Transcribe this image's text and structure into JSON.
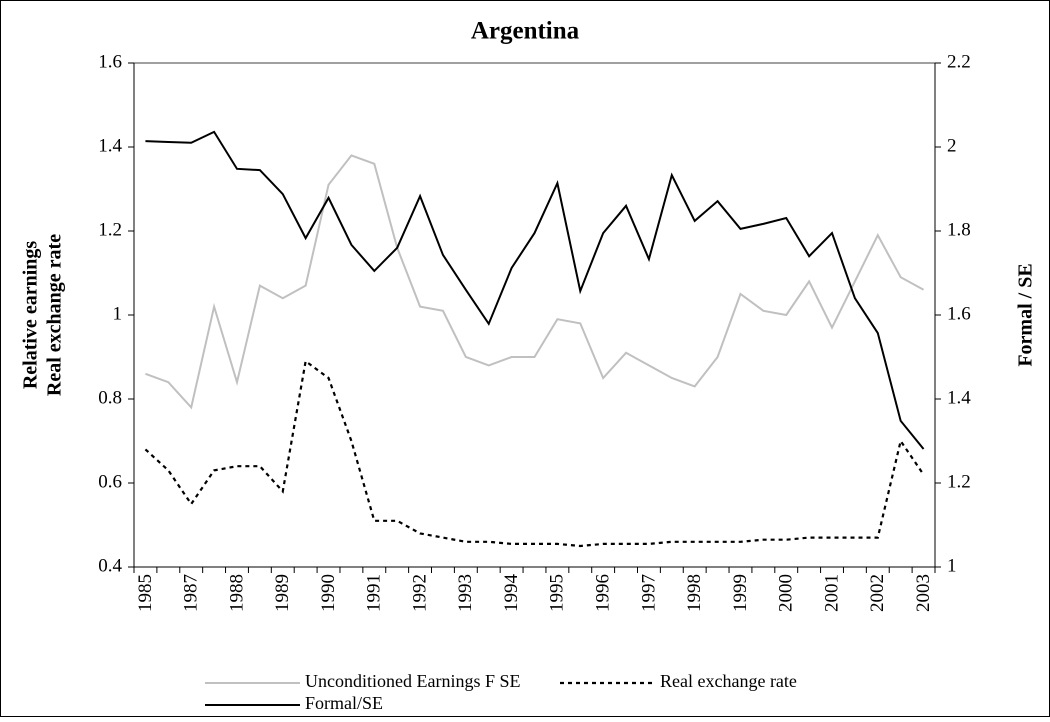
{
  "chart_data": {
    "type": "line",
    "title": "Argentina",
    "y_label": [
      "Relative earnings",
      "Real exchange rate"
    ],
    "y2_label": "Formal / SE",
    "categories": [
      "1985",
      null,
      "1987",
      null,
      "1988",
      null,
      "1989",
      null,
      "1990",
      null,
      "1991",
      null,
      "1992",
      null,
      "1993",
      null,
      "1994",
      null,
      "1995",
      null,
      "1996",
      null,
      "1997",
      null,
      "1998",
      null,
      "1999",
      null,
      "2000",
      null,
      "2001",
      null,
      "2002",
      null,
      "2003"
    ],
    "ylim": [
      0.4,
      1.6
    ],
    "yticks": [
      0.4,
      0.6,
      0.8,
      1,
      1.2,
      1.4,
      1.6
    ],
    "y2lim": [
      1,
      2.2
    ],
    "y2ticks": [
      1,
      1.2,
      1.4,
      1.6,
      1.8,
      2,
      2.2
    ],
    "series": [
      {
        "name": "Unconditioned Earnings F SE",
        "color": "#c0c0c0",
        "style": "solid",
        "values": [
          0.86,
          0.84,
          0.78,
          1.02,
          0.84,
          1.07,
          1.04,
          1.07,
          1.31,
          1.38,
          1.36,
          1.16,
          1.02,
          1.01,
          0.9,
          0.88,
          0.9,
          0.9,
          0.99,
          0.98,
          0.85,
          0.91,
          0.88,
          0.85,
          0.83,
          0.9,
          1.05,
          1.01,
          1.0,
          1.08,
          0.97,
          1.08,
          1.19,
          1.09,
          1.06
        ]
      },
      {
        "name": "Real exchange rate",
        "color": "#000000",
        "style": "dotted",
        "values": [
          0.68,
          0.63,
          0.55,
          0.63,
          0.64,
          0.64,
          0.58,
          0.89,
          0.85,
          0.7,
          0.51,
          0.51,
          0.48,
          0.47,
          0.46,
          0.46,
          0.455,
          0.455,
          0.455,
          0.45,
          0.455,
          0.455,
          0.455,
          0.46,
          0.46,
          0.46,
          0.46,
          0.465,
          0.465,
          0.47,
          0.47,
          0.47,
          0.47,
          0.7,
          0.62
        ]
      },
      {
        "name": "Formal/SE",
        "color": "#000000",
        "style": "solid",
        "axis": "y2",
        "values": [
          2.014,
          2.012,
          2.01,
          2.036,
          1.948,
          1.945,
          1.888,
          1.783,
          1.879,
          1.767,
          1.705,
          1.76,
          1.883,
          1.743,
          1.66,
          1.579,
          1.712,
          1.795,
          1.914,
          1.657,
          1.795,
          1.86,
          1.733,
          1.933,
          1.824,
          1.871,
          1.805,
          1.817,
          1.831,
          1.74,
          1.795,
          1.64,
          1.557,
          1.348,
          1.281
        ]
      }
    ]
  }
}
